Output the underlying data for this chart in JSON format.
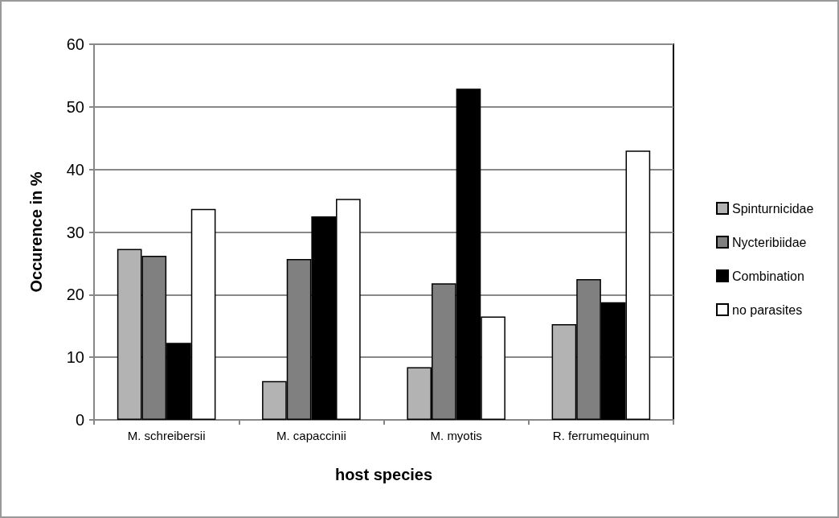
{
  "chart_data": {
    "type": "bar",
    "xlabel": "host species",
    "ylabel": "Occurence in %",
    "categories": [
      "M. schreibersii",
      "M. capaccinii",
      "M. myotis",
      "R. ferrumequinum"
    ],
    "series": [
      {
        "name": "Spinturnicidae",
        "color": "#b3b3b3",
        "values": [
          27.3,
          6.2,
          8.4,
          15.3
        ]
      },
      {
        "name": "Nycteribiidae",
        "color": "#808080",
        "values": [
          26.2,
          25.7,
          21.8,
          22.5
        ]
      },
      {
        "name": "Combination",
        "color": "#000000",
        "values": [
          12.3,
          32.5,
          52.9,
          18.8
        ]
      },
      {
        "name": "no parasites",
        "color": "#ffffff",
        "values": [
          33.7,
          35.3,
          16.5,
          43.0
        ]
      }
    ],
    "ylim": [
      0,
      60
    ],
    "yticks": [
      0,
      10,
      20,
      30,
      40,
      50,
      60
    ],
    "grid": "y",
    "legend": "right"
  }
}
